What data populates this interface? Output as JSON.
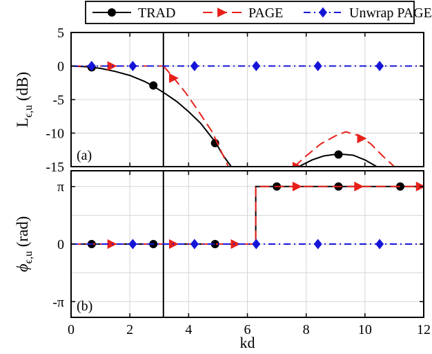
{
  "chart_data": [
    {
      "type": "line",
      "panel_label": "(a)",
      "ylabel_main": "L",
      "ylabel_sub": "ϵ,u",
      "ylabel_unit": "(dB)",
      "xlim": [
        0,
        12
      ],
      "ylim": [
        -15,
        5
      ],
      "yticks": [
        5,
        0,
        -5,
        -10,
        -15
      ],
      "ytick_labels": [
        "5",
        "0",
        "-5",
        "-10",
        "-15"
      ],
      "grid": true,
      "vline_x": 3.1416,
      "series": [
        {
          "name": "TRAD",
          "color": "#000000",
          "style": "solid",
          "marker": "circle",
          "segments": [
            [
              [
                0,
                0
              ],
              [
                0.5,
                -0.1
              ],
              [
                1.0,
                -0.35
              ],
              [
                1.5,
                -0.8
              ],
              [
                2.0,
                -1.4
              ],
              [
                2.5,
                -2.3
              ],
              [
                2.8,
                -3.0
              ],
              [
                3.2,
                -4.1
              ],
              [
                3.6,
                -5.3
              ],
              [
                4.0,
                -6.8
              ],
              [
                4.4,
                -8.5
              ],
              [
                4.9,
                -11.3
              ],
              [
                5.2,
                -13.5
              ],
              [
                5.45,
                -15
              ]
            ],
            [
              [
                7.75,
                -15
              ],
              [
                8.2,
                -14.0
              ],
              [
                8.6,
                -13.4
              ],
              [
                9.1,
                -13.1
              ],
              [
                9.6,
                -13.3
              ],
              [
                10.0,
                -14.0
              ],
              [
                10.4,
                -15
              ]
            ]
          ],
          "markers": [
            [
              0.7,
              -0.2
            ],
            [
              2.8,
              -2.9
            ],
            [
              4.9,
              -11.5
            ],
            [
              9.1,
              -13.2
            ]
          ]
        },
        {
          "name": "PAGE",
          "color": "#e8201a",
          "style": "dashed",
          "marker": "triangle-right",
          "segments": [
            [
              [
                0,
                0
              ],
              [
                3.1416,
                0
              ]
            ],
            [
              [
                3.1416,
                0
              ],
              [
                3.5,
                -1.8
              ],
              [
                3.9,
                -4.0
              ],
              [
                4.3,
                -6.5
              ],
              [
                4.8,
                -9.8
              ],
              [
                5.35,
                -15
              ]
            ],
            [
              [
                7.6,
                -15
              ],
              [
                8.0,
                -13.4
              ],
              [
                8.5,
                -11.6
              ],
              [
                9.0,
                -10.4
              ],
              [
                9.35,
                -9.8
              ],
              [
                9.8,
                -10.4
              ],
              [
                10.2,
                -11.6
              ],
              [
                10.6,
                -13.4
              ],
              [
                11.0,
                -15
              ]
            ]
          ],
          "markers": [
            [
              1.4,
              0
            ],
            [
              3.5,
              -1.8
            ],
            [
              7.7,
              -15
            ],
            [
              9.9,
              -10.8
            ]
          ]
        },
        {
          "name": "Unwrap PAGE",
          "color": "#1515d8",
          "style": "dashdot",
          "marker": "diamond",
          "segments": [
            [
              [
                0,
                0
              ],
              [
                12,
                0
              ]
            ]
          ],
          "markers": [
            [
              0.7,
              0
            ],
            [
              2.1,
              0
            ],
            [
              4.2,
              0
            ],
            [
              6.3,
              0
            ],
            [
              8.4,
              0
            ],
            [
              10.5,
              0
            ]
          ]
        }
      ]
    },
    {
      "type": "line",
      "panel_label": "(b)",
      "ylabel_main": "ϕ",
      "ylabel_sub": "ϵ,u",
      "ylabel_unit": "(rad)",
      "xlabel": "kd",
      "xlim": [
        0,
        12
      ],
      "ylim": [
        -4,
        4
      ],
      "yticks": [
        3.1416,
        0,
        -3.1416
      ],
      "ytick_labels": [
        "π",
        "0",
        "-π"
      ],
      "xticks": [
        0,
        2,
        4,
        6,
        8,
        10,
        12
      ],
      "xtick_labels": [
        "0",
        "2",
        "4",
        "6",
        "8",
        "10",
        "12"
      ],
      "grid": true,
      "vline_x": 3.1416,
      "series": [
        {
          "name": "TRAD",
          "color": "#000000",
          "style": "solid",
          "marker": "circle",
          "segments": [
            [
              [
                0,
                0
              ],
              [
                6.2832,
                0
              ],
              [
                6.2832,
                3.1416
              ],
              [
                12,
                3.1416
              ]
            ]
          ],
          "markers": [
            [
              0.7,
              0
            ],
            [
              2.8,
              0
            ],
            [
              4.9,
              0
            ],
            [
              7.0,
              3.1416
            ],
            [
              9.1,
              3.1416
            ],
            [
              11.2,
              3.1416
            ]
          ]
        },
        {
          "name": "PAGE",
          "color": "#e8201a",
          "style": "dashed",
          "marker": "triangle-right",
          "segments": [
            [
              [
                0,
                0
              ],
              [
                6.2832,
                0
              ],
              [
                6.2832,
                3.1416
              ],
              [
                12,
                3.1416
              ]
            ]
          ],
          "markers": [
            [
              1.4,
              0
            ],
            [
              3.5,
              0
            ],
            [
              5.6,
              0
            ],
            [
              7.7,
              3.1416
            ],
            [
              9.8,
              3.1416
            ],
            [
              11.9,
              3.1416
            ]
          ]
        },
        {
          "name": "Unwrap PAGE",
          "color": "#1515d8",
          "style": "dashdot",
          "marker": "diamond",
          "segments": [
            [
              [
                0,
                0
              ],
              [
                12,
                0
              ]
            ]
          ],
          "markers": [
            [
              2.1,
              0
            ],
            [
              4.2,
              0
            ],
            [
              6.3,
              0
            ],
            [
              8.4,
              0
            ],
            [
              10.5,
              0
            ]
          ]
        }
      ]
    }
  ],
  "legend": {
    "placement": "top-center",
    "entries": [
      {
        "label": "TRAD",
        "color": "#000000",
        "style": "solid",
        "marker": "circle"
      },
      {
        "label": "PAGE",
        "color": "#e8201a",
        "style": "dashed",
        "marker": "triangle-right"
      },
      {
        "label": "Unwrap PAGE",
        "color": "#1515d8",
        "style": "dashdot",
        "marker": "diamond"
      }
    ]
  }
}
